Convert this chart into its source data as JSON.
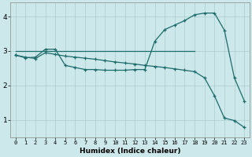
{
  "background_color": "#cce8eb",
  "grid_color": "#aacccc",
  "line_color": "#1e6b6b",
  "xlabel": "Humidex (Indice chaleur)",
  "x_ticks": [
    0,
    1,
    2,
    3,
    4,
    5,
    6,
    7,
    8,
    9,
    10,
    11,
    12,
    13,
    14,
    15,
    16,
    17,
    18,
    19,
    20,
    21,
    22,
    23
  ],
  "y_ticks": [
    1,
    2,
    3,
    4
  ],
  "xlim": [
    -0.5,
    23.5
  ],
  "ylim": [
    0.5,
    4.4
  ],
  "line1_x": [
    0,
    1,
    2,
    3,
    4,
    5,
    6,
    7,
    8,
    9,
    10,
    11,
    12,
    13,
    14,
    15,
    16,
    17,
    18,
    19,
    20,
    21,
    22,
    23
  ],
  "line1_y": [
    2.88,
    2.8,
    2.82,
    3.05,
    3.05,
    2.58,
    2.52,
    2.46,
    2.46,
    2.44,
    2.44,
    2.44,
    2.46,
    2.46,
    3.28,
    3.62,
    3.75,
    3.88,
    4.05,
    4.1,
    4.1,
    3.6,
    2.22,
    1.55
  ],
  "line2_x": [
    0,
    18
  ],
  "line2_y": [
    3.0,
    3.0
  ],
  "line3_x": [
    0,
    1,
    2,
    3,
    4,
    5,
    6,
    7,
    8,
    9,
    10,
    11,
    12,
    13,
    14,
    15,
    16,
    17,
    18,
    19,
    20,
    21,
    22,
    23
  ],
  "line3_y": [
    2.88,
    2.82,
    2.78,
    2.95,
    2.9,
    2.85,
    2.82,
    2.79,
    2.76,
    2.72,
    2.68,
    2.65,
    2.62,
    2.58,
    2.55,
    2.52,
    2.48,
    2.44,
    2.4,
    2.22,
    1.7,
    1.05,
    0.98,
    0.78
  ]
}
